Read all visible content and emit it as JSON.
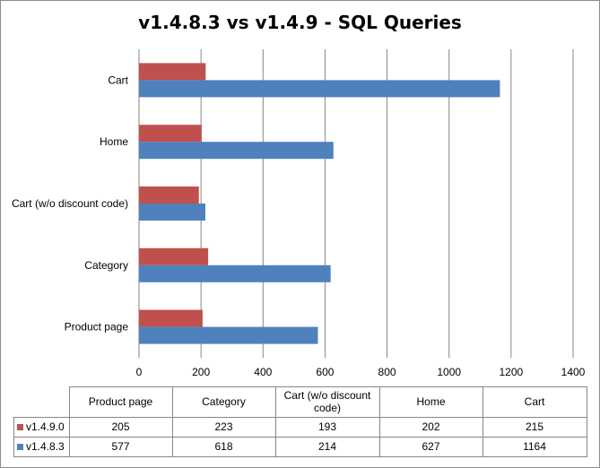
{
  "chart_data": {
    "type": "bar",
    "orientation": "horizontal",
    "title": "v1.4.8.3 vs v1.4.9 - SQL Queries",
    "categories": [
      "Product page",
      "Category",
      "Cart (w/o discount code)",
      "Home",
      "Cart"
    ],
    "series": [
      {
        "name": "v1.4.9.0",
        "color": "#c0504d",
        "values": [
          205,
          223,
          193,
          202,
          215
        ]
      },
      {
        "name": "v1.4.8.3",
        "color": "#4f81bd",
        "values": [
          577,
          618,
          214,
          627,
          1164
        ]
      }
    ],
    "xlim": [
      0,
      1400
    ],
    "xticks": [
      0,
      200,
      400,
      600,
      800,
      1000,
      1200,
      1400
    ],
    "grid": "vertical",
    "legend": "data table"
  }
}
